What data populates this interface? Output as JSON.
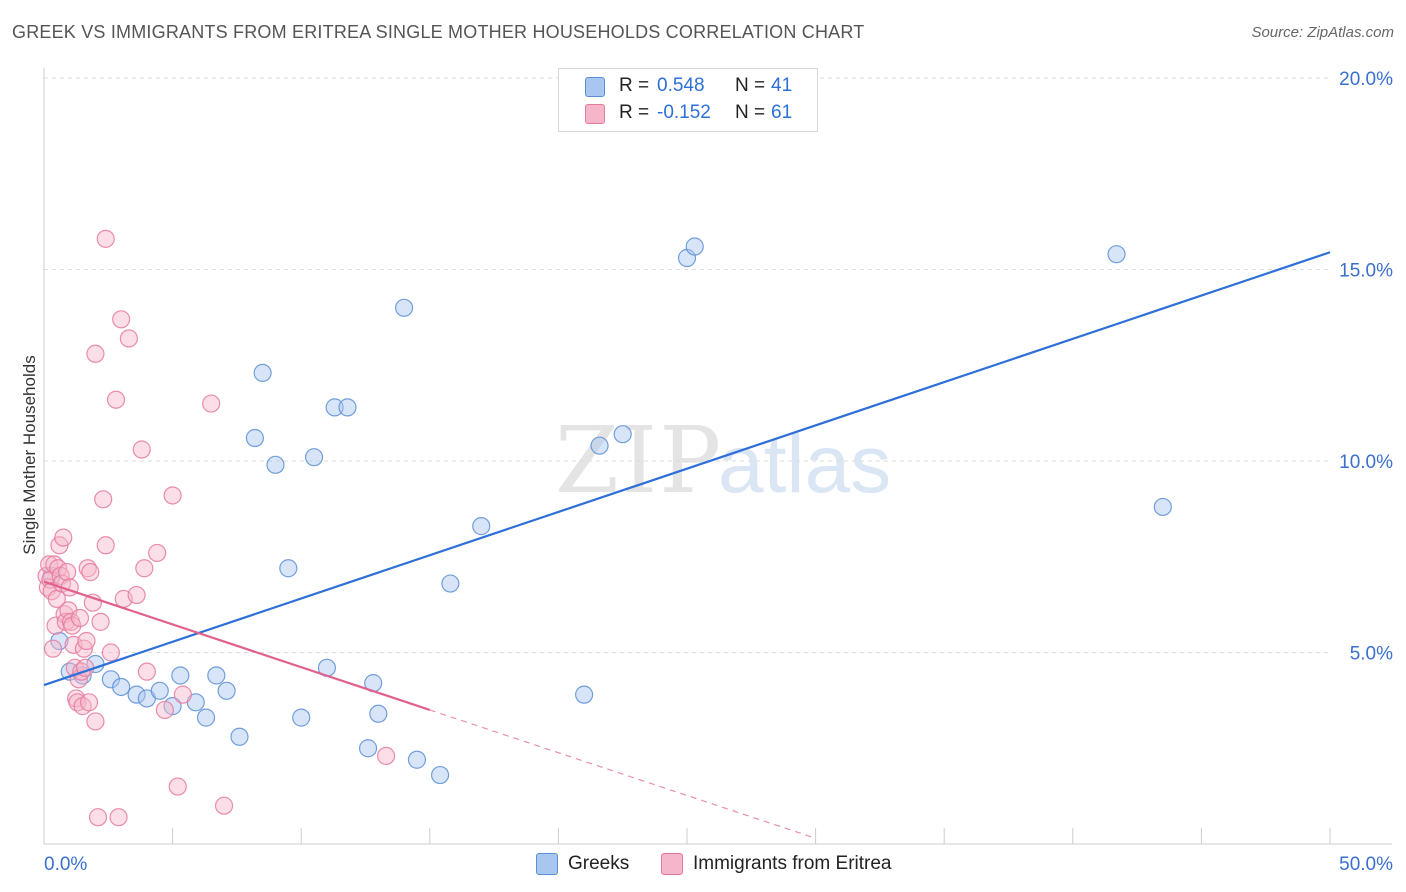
{
  "header": {
    "title": "GREEK VS IMMIGRANTS FROM ERITREA SINGLE MOTHER HOUSEHOLDS CORRELATION CHART",
    "source": "Source: ZipAtlas.com"
  },
  "watermark": {
    "zip": "ZIP",
    "atlas": "atlas"
  },
  "stats_legend": [
    {
      "r_label": "R =",
      "r_value": "0.548",
      "n_label": "N =",
      "n_value": "41",
      "color": "#a9c6f0"
    },
    {
      "r_label": "R =",
      "r_value": "-0.152",
      "n_label": "N =",
      "n_value": "61",
      "color": "#f6b6c9"
    }
  ],
  "colors": {
    "greeks_fill": "#a9c6f0",
    "greeks_stroke": "#5b8fd6",
    "greeks_line": "#2e6fd8",
    "eritrea_fill": "#f6b6c9",
    "eritrea_stroke": "#e57a9c",
    "eritrea_line": "#e0608e",
    "tick_label": "#3a6fd0",
    "grid": "#dddddd"
  },
  "chart_data": {
    "type": "scatter",
    "title": "GREEK VS IMMIGRANTS FROM ERITREA SINGLE MOTHER HOUSEHOLDS CORRELATION CHART",
    "xlabel": "",
    "ylabel": "Single Mother Households",
    "xlim": [
      0,
      50
    ],
    "ylim": [
      0,
      20
    ],
    "x_tick_labels": [
      "0.0%",
      "50.0%"
    ],
    "y_ticks": [
      5,
      10,
      15,
      20
    ],
    "y_tick_labels": [
      "5.0%",
      "10.0%",
      "15.0%",
      "20.0%"
    ],
    "grid": true,
    "legend_position": "bottom-center",
    "series": [
      {
        "name": "Greeks",
        "trend": {
          "x": [
            0,
            50
          ],
          "y": [
            4.15,
            15.45
          ],
          "solid_until": 50
        },
        "points": [
          [
            0.3,
            7.0
          ],
          [
            0.6,
            5.3
          ],
          [
            1.0,
            4.5
          ],
          [
            1.5,
            4.4
          ],
          [
            2.0,
            4.7
          ],
          [
            2.6,
            4.3
          ],
          [
            3.0,
            4.1
          ],
          [
            3.6,
            3.9
          ],
          [
            4.0,
            3.8
          ],
          [
            4.5,
            4.0
          ],
          [
            5.0,
            3.6
          ],
          [
            5.3,
            4.4
          ],
          [
            5.9,
            3.7
          ],
          [
            6.3,
            3.3
          ],
          [
            6.7,
            4.4
          ],
          [
            7.1,
            4.0
          ],
          [
            7.6,
            2.8
          ],
          [
            8.2,
            10.6
          ],
          [
            8.5,
            12.3
          ],
          [
            9.0,
            9.9
          ],
          [
            9.5,
            7.2
          ],
          [
            10.0,
            3.3
          ],
          [
            10.5,
            10.1
          ],
          [
            11.0,
            4.6
          ],
          [
            11.3,
            11.4
          ],
          [
            11.8,
            11.4
          ],
          [
            12.6,
            2.5
          ],
          [
            12.8,
            4.2
          ],
          [
            13.0,
            3.4
          ],
          [
            14.0,
            14.0
          ],
          [
            14.5,
            2.2
          ],
          [
            15.4,
            1.8
          ],
          [
            15.8,
            6.8
          ],
          [
            17.0,
            8.3
          ],
          [
            21.0,
            3.9
          ],
          [
            21.6,
            10.4
          ],
          [
            22.5,
            10.7
          ],
          [
            25.0,
            15.3
          ],
          [
            25.3,
            15.6
          ],
          [
            41.7,
            15.4
          ],
          [
            43.5,
            8.8
          ]
        ]
      },
      {
        "name": "Immigrants from Eritrea",
        "trend": {
          "x": [
            0,
            30
          ],
          "y": [
            6.85,
            0.15
          ],
          "solid_until": 15
        },
        "points": [
          [
            0.1,
            7.0
          ],
          [
            0.15,
            6.7
          ],
          [
            0.2,
            7.3
          ],
          [
            0.25,
            6.9
          ],
          [
            0.3,
            6.6
          ],
          [
            0.35,
            5.1
          ],
          [
            0.4,
            7.3
          ],
          [
            0.45,
            5.7
          ],
          [
            0.5,
            6.4
          ],
          [
            0.55,
            7.2
          ],
          [
            0.6,
            7.8
          ],
          [
            0.65,
            7.0
          ],
          [
            0.7,
            6.8
          ],
          [
            0.75,
            8.0
          ],
          [
            0.8,
            6.0
          ],
          [
            0.85,
            5.8
          ],
          [
            0.9,
            7.1
          ],
          [
            0.95,
            6.1
          ],
          [
            1.0,
            6.7
          ],
          [
            1.05,
            5.8
          ],
          [
            1.1,
            5.7
          ],
          [
            1.15,
            5.2
          ],
          [
            1.2,
            4.6
          ],
          [
            1.25,
            3.8
          ],
          [
            1.3,
            3.7
          ],
          [
            1.35,
            4.3
          ],
          [
            1.4,
            5.9
          ],
          [
            1.45,
            4.5
          ],
          [
            1.5,
            3.6
          ],
          [
            1.55,
            5.1
          ],
          [
            1.6,
            4.6
          ],
          [
            1.65,
            5.3
          ],
          [
            1.7,
            7.2
          ],
          [
            1.75,
            3.7
          ],
          [
            1.8,
            7.1
          ],
          [
            1.9,
            6.3
          ],
          [
            2.0,
            12.8
          ],
          [
            2.0,
            3.2
          ],
          [
            2.1,
            0.7
          ],
          [
            2.2,
            5.8
          ],
          [
            2.3,
            9.0
          ],
          [
            2.4,
            15.8
          ],
          [
            2.4,
            7.8
          ],
          [
            2.6,
            5.0
          ],
          [
            2.8,
            11.6
          ],
          [
            2.9,
            0.7
          ],
          [
            3.0,
            13.7
          ],
          [
            3.1,
            6.4
          ],
          [
            3.3,
            13.2
          ],
          [
            3.6,
            6.5
          ],
          [
            3.8,
            10.3
          ],
          [
            3.9,
            7.2
          ],
          [
            4.0,
            4.5
          ],
          [
            4.4,
            7.6
          ],
          [
            4.7,
            3.5
          ],
          [
            5.0,
            9.1
          ],
          [
            5.2,
            1.5
          ],
          [
            5.4,
            3.9
          ],
          [
            6.5,
            11.5
          ],
          [
            7.0,
            1.0
          ],
          [
            13.3,
            2.3
          ]
        ]
      }
    ]
  }
}
